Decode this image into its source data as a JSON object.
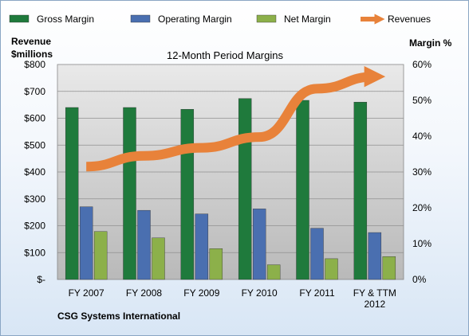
{
  "chart_data": {
    "type": "bar",
    "title": "12-Month Period Margins",
    "company_label": "CSG Systems International",
    "left_axis_label": [
      "Revenue",
      "$millions"
    ],
    "right_axis_label": "Margin %",
    "categories": [
      [
        "FY 2007"
      ],
      [
        "FY 2008"
      ],
      [
        "FY 2009"
      ],
      [
        "FY 2010"
      ],
      [
        "FY 2011"
      ],
      [
        "FY & TTM",
        "2012"
      ]
    ],
    "left_ticks": [
      "$-",
      "$100",
      "$200",
      "$300",
      "$400",
      "$500",
      "$600",
      "$700",
      "$800"
    ],
    "right_ticks": [
      "0%",
      "10%",
      "20%",
      "30%",
      "40%",
      "50%",
      "60%"
    ],
    "ylim_left": [
      0,
      800
    ],
    "ylim_right": [
      0,
      60
    ],
    "grid": true,
    "legend_position": "top",
    "series": [
      {
        "name": "Gross Margin",
        "kind": "bar",
        "axis": "right",
        "color": "#1f7a3c",
        "values": [
          48,
          48,
          47.5,
          50.5,
          50,
          49.5
        ]
      },
      {
        "name": "Operating Margin",
        "kind": "bar",
        "axis": "right",
        "color": "#4a6fb0",
        "values": [
          20.3,
          19.3,
          18.3,
          19.7,
          14.3,
          13.1
        ]
      },
      {
        "name": "Net Margin",
        "kind": "bar",
        "axis": "right",
        "color": "#8cb04a",
        "values": [
          13.4,
          11.6,
          8.6,
          4.1,
          5.8,
          6.4
        ]
      },
      {
        "name": "Revenues",
        "kind": "line",
        "axis": "left",
        "color": "#e8823a",
        "values": [
          420,
          460,
          490,
          530,
          710,
          755
        ]
      }
    ]
  }
}
